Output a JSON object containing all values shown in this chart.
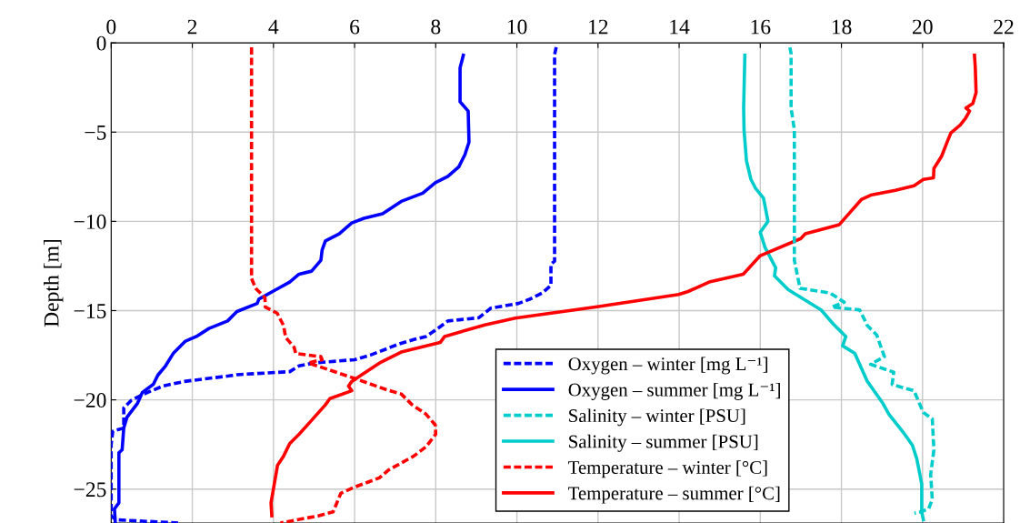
{
  "chart_data": {
    "type": "line",
    "ylabel": "Depth [m]",
    "xlim": [
      0,
      22
    ],
    "ylim": [
      -26.9,
      0
    ],
    "xticks": [
      0,
      2,
      4,
      6,
      8,
      10,
      12,
      14,
      16,
      18,
      20,
      22
    ],
    "yticks": [
      0,
      {
        "value": -5,
        "label": "−5"
      },
      {
        "value": -10,
        "label": "−10"
      },
      {
        "value": -15,
        "label": "−15"
      },
      {
        "value": -20,
        "label": "−20"
      },
      {
        "value": -25,
        "label": "−25"
      }
    ],
    "grid": true,
    "legend": "bottom right",
    "marker": "none",
    "series": [
      {
        "name": "Oxygen – winter [mg L⁻¹]",
        "color": "#0000ff",
        "line_style": "dashed",
        "x": [
          10.97,
          10.93,
          10.93,
          10.84,
          10.84,
          10.63,
          10.33,
          10.04,
          9.36,
          9.06,
          8.3,
          7.99,
          7.76,
          7.46,
          7.08,
          6.69,
          6.39,
          6.0,
          5.01,
          4.63,
          4.4,
          3.1,
          2.9,
          1.8,
          1.27,
          0.81,
          0.5,
          0.31,
          0.31,
          0.04,
          0,
          0,
          0.12,
          1.65
        ],
        "values": [
          -0.24,
          -0.66,
          -12.23,
          -12.4,
          -13.59,
          -14.01,
          -14.35,
          -14.6,
          -14.86,
          -15.4,
          -15.58,
          -16.1,
          -16.45,
          -16.62,
          -16.88,
          -17.23,
          -17.49,
          -17.75,
          -17.93,
          -18.1,
          -18.42,
          -18.59,
          -18.66,
          -18.97,
          -19.23,
          -19.67,
          -20.02,
          -20.45,
          -21.58,
          -21.76,
          -22.5,
          -26.5,
          -26.72,
          -26.9
        ]
      },
      {
        "name": "Oxygen – summer [mg L⁻¹]",
        "color": "#0000ff",
        "line_style": "solid",
        "x": [
          8.68,
          8.6,
          8.6,
          8.8,
          8.82,
          8.72,
          8.57,
          8.3,
          7.99,
          7.68,
          7.15,
          6.69,
          6.23,
          5.93,
          5.62,
          5.28,
          5.2,
          5.17,
          4.94,
          4.63,
          4.4,
          4.06,
          3.64,
          3.6,
          3.1,
          2.87,
          2.41,
          2.1,
          1.83,
          1.53,
          1.34,
          1.15,
          1.04,
          0.77,
          0.65,
          0.39,
          0.31,
          0.27,
          0.19,
          0.19,
          0.08,
          0.1
        ],
        "values": [
          -0.69,
          -1.4,
          -3.3,
          -3.82,
          -5.56,
          -6.26,
          -6.94,
          -7.48,
          -7.83,
          -8.42,
          -8.88,
          -9.57,
          -9.83,
          -10.09,
          -10.7,
          -11.1,
          -11.6,
          -12.18,
          -12.79,
          -12.96,
          -13.4,
          -13.83,
          -14.36,
          -14.6,
          -15.05,
          -15.58,
          -16.0,
          -16.45,
          -16.71,
          -17.4,
          -18.1,
          -18.62,
          -19.13,
          -19.58,
          -20.19,
          -20.97,
          -21.58,
          -22.8,
          -22.97,
          -25.77,
          -26.11,
          -26.8
        ]
      },
      {
        "name": "Salinity – winter [PSU]",
        "color": "#00cccc",
        "line_style": "dashed",
        "x": [
          16.73,
          16.76,
          16.76,
          16.84,
          16.84,
          16.98,
          17.72,
          18.07,
          17.76,
          18.45,
          18.64,
          18.87,
          19.06,
          18.72,
          19.29,
          19.25,
          19.79,
          20.02,
          20.24,
          20.28,
          20.2,
          20.24,
          20.15,
          19.95,
          19.8
        ],
        "values": [
          -0.25,
          -0.6,
          -3.65,
          -4.87,
          -12.18,
          -13.75,
          -14.01,
          -14.53,
          -14.8,
          -14.96,
          -15.84,
          -16.36,
          -17.58,
          -18.01,
          -18.45,
          -19.14,
          -19.49,
          -20.71,
          -21.06,
          -22.8,
          -24.19,
          -25.58,
          -26.1,
          -26.28,
          -26.35
        ]
      },
      {
        "name": "Salinity – summer [PSU]",
        "color": "#00cccc",
        "line_style": "solid",
        "x": [
          15.62,
          15.59,
          15.6,
          15.66,
          15.77,
          15.89,
          16.08,
          16.19,
          16.0,
          16.12,
          16.38,
          16.35,
          16.69,
          17.19,
          17.5,
          17.8,
          18.11,
          18.03,
          18.33,
          18.64,
          18.75,
          19.02,
          19.17,
          19.56,
          19.75,
          19.86,
          19.98,
          19.98,
          20.02
        ],
        "values": [
          -0.69,
          -3.65,
          -4.88,
          -6.61,
          -7.65,
          -8.17,
          -8.7,
          -10.0,
          -10.61,
          -11.48,
          -12.6,
          -13.05,
          -13.83,
          -14.53,
          -14.96,
          -15.75,
          -16.45,
          -16.97,
          -17.4,
          -18.97,
          -19.32,
          -20.19,
          -20.8,
          -21.93,
          -22.54,
          -23.32,
          -24.72,
          -26.28,
          -26.72
        ]
      },
      {
        "name": "Temperature – winter [°C]",
        "color": "#ff0000",
        "line_style": "dashed",
        "x": [
          3.46,
          3.46,
          3.56,
          3.79,
          3.8,
          4.09,
          4.25,
          4.3,
          4.51,
          4.55,
          5.17,
          5.2,
          4.86,
          6.0,
          6.76,
          7.15,
          7.42,
          7.76,
          7.99,
          8.0,
          7.76,
          7.46,
          6.84,
          6.61,
          6.0,
          5.66,
          5.47,
          5.1,
          4.17
        ],
        "values": [
          -0.25,
          -13.2,
          -13.75,
          -14.27,
          -14.8,
          -15.14,
          -15.84,
          -16.5,
          -17.06,
          -17.4,
          -17.58,
          -17.75,
          -17.93,
          -18.8,
          -19.41,
          -19.67,
          -20.28,
          -20.8,
          -21.41,
          -21.93,
          -22.63,
          -23.15,
          -23.93,
          -24.37,
          -24.89,
          -25.24,
          -26.28,
          -26.5,
          -26.9
        ]
      },
      {
        "name": "Temperature – summer [°C]",
        "color": "#ff0000",
        "line_style": "solid",
        "x": [
          21.28,
          21.3,
          21.32,
          21.24,
          21.07,
          21.16,
          21.05,
          20.93,
          20.7,
          20.62,
          20.47,
          20.28,
          20.27,
          20.02,
          19.79,
          19.33,
          18.72,
          18.49,
          18.22,
          17.95,
          17.11,
          17.0,
          16.0,
          15.58,
          14.74,
          14.22,
          13.99,
          11.98,
          9.96,
          9.21,
          8.22,
          8.11,
          7.15,
          6.62,
          6.16,
          5.93,
          5.85,
          5.93,
          5.39,
          5.28,
          4.94,
          4.63,
          4.4,
          4.25,
          4.1,
          4.02,
          3.94,
          3.96
        ],
        "values": [
          -0.69,
          -1.38,
          -2.78,
          -3.39,
          -3.65,
          -3.82,
          -4.26,
          -4.6,
          -5.04,
          -5.48,
          -6.35,
          -7.04,
          -7.56,
          -7.65,
          -8.0,
          -8.26,
          -8.53,
          -8.78,
          -9.48,
          -10.18,
          -10.7,
          -10.96,
          -11.92,
          -12.96,
          -13.4,
          -13.93,
          -14.1,
          -14.78,
          -15.42,
          -15.8,
          -16.45,
          -16.79,
          -17.32,
          -17.93,
          -18.62,
          -18.97,
          -19.23,
          -19.49,
          -19.93,
          -20.28,
          -21.15,
          -21.93,
          -22.45,
          -23.15,
          -23.67,
          -24.72,
          -25.77,
          -26.5
        ]
      }
    ]
  }
}
